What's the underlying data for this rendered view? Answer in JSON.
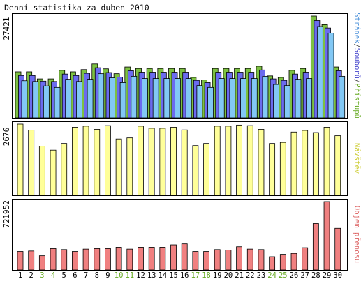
{
  "chart_data": {
    "type": "bar",
    "title": "Denní statistika za duben 2010",
    "days": [
      "1",
      "2",
      "3",
      "4",
      "5",
      "6",
      "7",
      "8",
      "9",
      "10",
      "11",
      "12",
      "13",
      "14",
      "15",
      "16",
      "17",
      "18",
      "19",
      "20",
      "21",
      "22",
      "23",
      "24",
      "25",
      "26",
      "27",
      "28",
      "29",
      "30"
    ],
    "weekend_days": [
      "3",
      "4",
      "10",
      "11",
      "17",
      "18",
      "24",
      "25"
    ],
    "panels": [
      {
        "id": "traffic",
        "max_label": "27421",
        "ylim": [
          0,
          27421
        ],
        "legend": [
          {
            "text": "Stránek",
            "color": "#4a90d9"
          },
          {
            "text": "/",
            "color": "#444444"
          },
          {
            "text": "Souborů",
            "color": "#4444cc"
          },
          {
            "text": "/",
            "color": "#444444"
          },
          {
            "text": "Přístupů",
            "color": "#66aa22"
          }
        ],
        "series": [
          {
            "name": "Přístupů",
            "color": "#7dc142",
            "values": [
              12400,
              12400,
              10500,
              10500,
              12800,
              12400,
              13000,
              14500,
              13200,
              11900,
              13700,
              13300,
              13300,
              13300,
              13300,
              13300,
              10900,
              10200,
              13300,
              13300,
              13300,
              13300,
              13900,
              11300,
              10900,
              12800,
              13300,
              27421,
              25100,
              13700
            ]
          },
          {
            "name": "Souborů",
            "color": "#6b6bef",
            "values": [
              11400,
              11400,
              9900,
              9800,
              11800,
              11400,
              12000,
              13500,
              12200,
              11000,
              12700,
              12300,
              12300,
              12300,
              12300,
              12300,
              10100,
              9500,
              12300,
              12300,
              12300,
              12300,
              12900,
              10500,
              10100,
              11800,
              12300,
              26200,
              24200,
              12700
            ]
          },
          {
            "name": "Stránek",
            "color": "#82c8f5",
            "values": [
              10000,
              9800,
              8600,
              8200,
              10400,
              9800,
              10400,
              11900,
              10800,
              9500,
              11200,
              10600,
              10600,
              10600,
              10600,
              10600,
              8700,
              8200,
              10600,
              10600,
              10600,
              10600,
              11200,
              9000,
              8700,
              10400,
              10600,
              24600,
              22800,
              11200
            ]
          }
        ]
      },
      {
        "id": "visitors",
        "max_label": "2676",
        "ylim": [
          0,
          2676
        ],
        "legend": [
          {
            "text": "Návštěv",
            "color": "#cccc33"
          }
        ],
        "series": [
          {
            "name": "Návštěv",
            "color": "#ffff99",
            "values": [
              2676,
              2450,
              1850,
              1700,
              1950,
              2560,
              2600,
              2480,
              2620,
              2120,
              2160,
              2600,
              2520,
              2520,
              2560,
              2460,
              1870,
              1950,
              2600,
              2600,
              2640,
              2620,
              2480,
              1950,
              1990,
              2380,
              2440,
              2360,
              2560,
              2240
            ]
          }
        ]
      },
      {
        "id": "volume",
        "max_label": "721952",
        "ylim": [
          0,
          721952
        ],
        "legend": [
          {
            "text": "Objem přenosu",
            "color": "#dd6666"
          }
        ],
        "series": [
          {
            "name": "Objem přenosu",
            "color": "#f08080",
            "values": [
              195000,
              200000,
              150000,
              225000,
              215000,
              195000,
              220000,
              225000,
              225000,
              240000,
              220000,
              240000,
              240000,
              240000,
              265000,
              275000,
              195000,
              195000,
              215000,
              210000,
              245000,
              220000,
              215000,
              140000,
              165000,
              175000,
              235000,
              490000,
              721952,
              440000
            ]
          }
        ]
      }
    ]
  }
}
